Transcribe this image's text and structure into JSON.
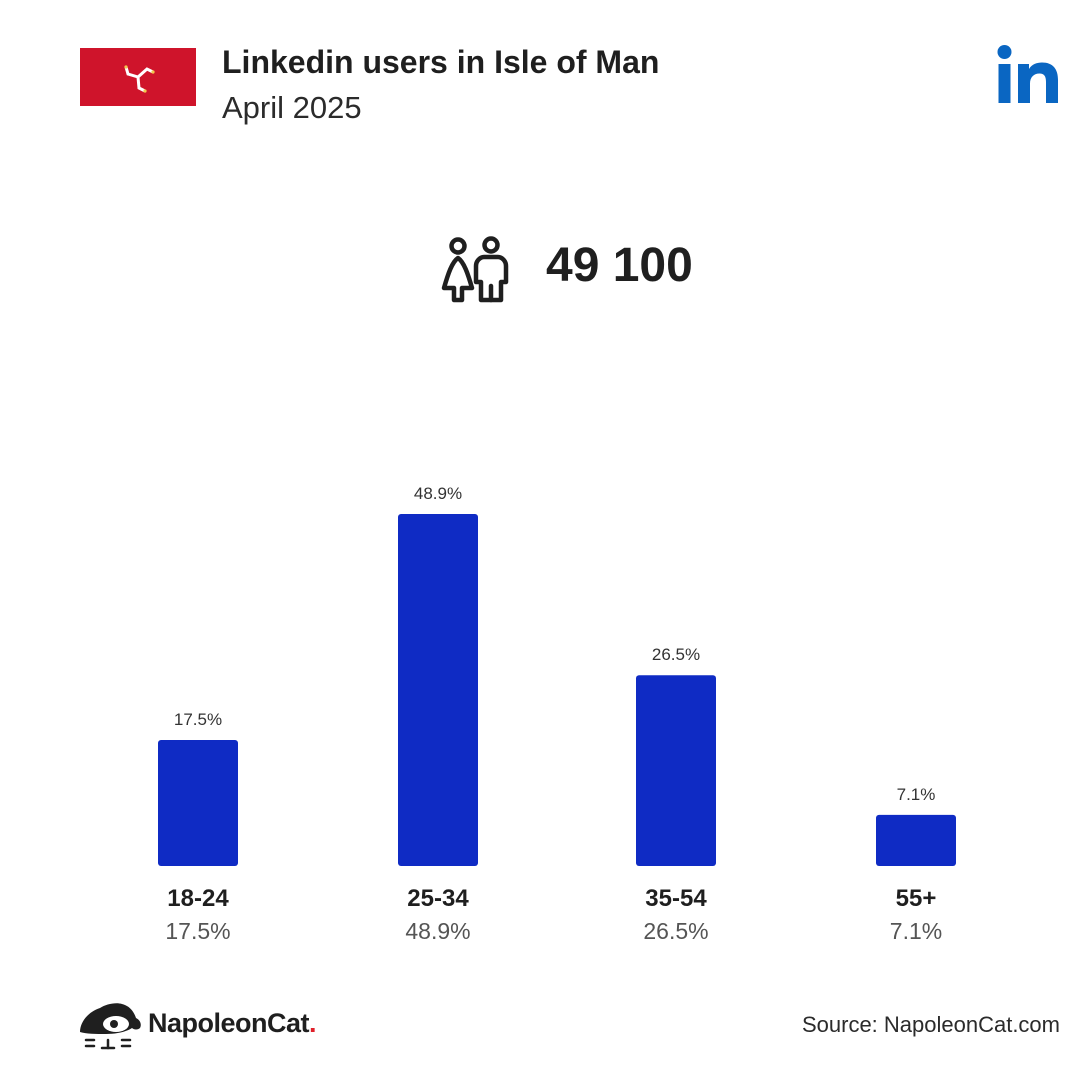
{
  "header": {
    "title": "Linkedin users in Isle of Man",
    "subtitle": "April 2025"
  },
  "flag": {
    "country": "Isle of Man",
    "color": "#cf142b"
  },
  "platform_icon": "linkedin-icon",
  "total_users": {
    "icon": "users-icon",
    "value": "49 100"
  },
  "colors": {
    "bar": "#0f2bc4",
    "linkedin": "#0a66c2",
    "text": "#1f1f1f",
    "muted": "#555555"
  },
  "chart_data": {
    "type": "bar",
    "categories": [
      "18-24",
      "25-34",
      "35-54",
      "55+"
    ],
    "values": [
      17.5,
      48.9,
      26.5,
      7.1
    ],
    "value_labels": [
      "17.5%",
      "48.9%",
      "26.5%",
      "7.1%"
    ],
    "title": "",
    "xlabel": "",
    "ylabel": "",
    "ylim": [
      0,
      48.9
    ],
    "grid": false
  },
  "footer": {
    "brand": "NapoleonCat",
    "brand_dot": ".",
    "source": "Source: NapoleonCat.com"
  }
}
